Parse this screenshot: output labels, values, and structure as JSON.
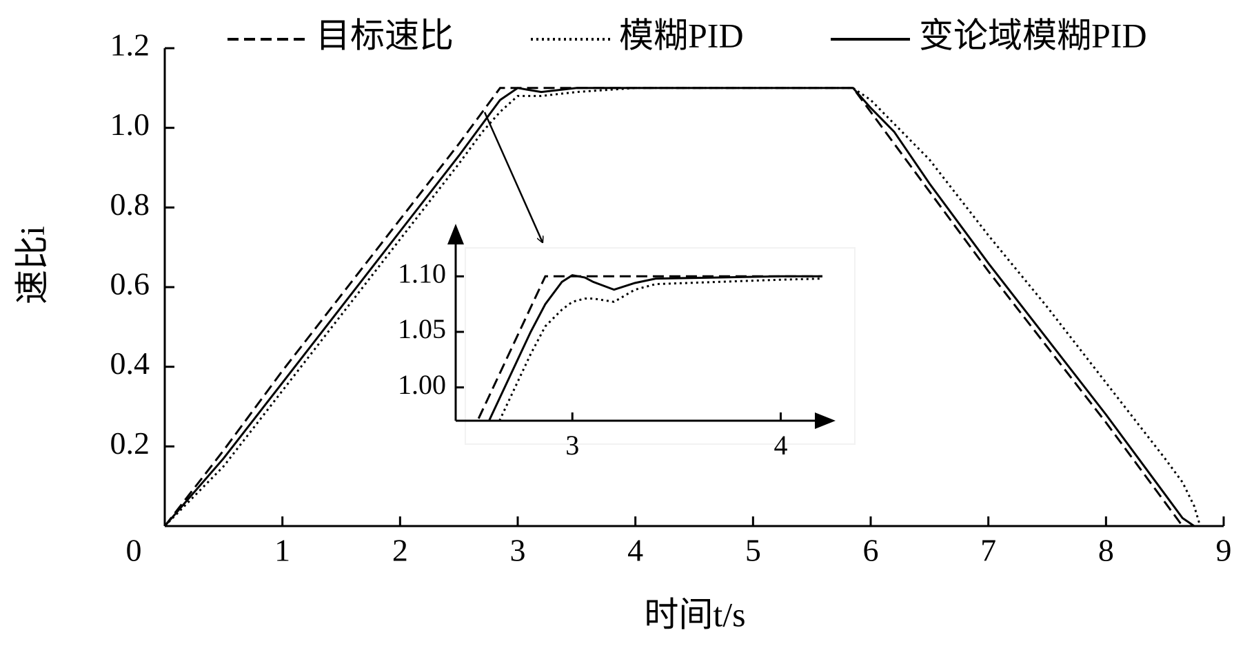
{
  "chart_data": [
    {
      "type": "line",
      "xlabel": "时间t/s",
      "ylabel": "速比i",
      "xlim": [
        0,
        9
      ],
      "ylim": [
        0,
        1.2
      ],
      "xticks": [
        0,
        1,
        2,
        3,
        4,
        5,
        6,
        7,
        8,
        9
      ],
      "yticks": [
        0.2,
        0.4,
        0.6,
        0.8,
        {
          "value": 1,
          "label": "1.0"
        },
        1.2
      ],
      "x": [
        0,
        0.5,
        1,
        1.5,
        2,
        2.5,
        2.7,
        2.85,
        3,
        3.2,
        3.5,
        4,
        5,
        5.7,
        5.85,
        6,
        6.2,
        6.5,
        7,
        7.5,
        8,
        8.5,
        8.65,
        8.75,
        8.8
      ],
      "series": [
        {
          "name": "目标速比",
          "color": "#000000",
          "dash": "dashed",
          "values": [
            0,
            0.19,
            0.39,
            0.58,
            0.77,
            0.96,
            1.04,
            1.1,
            1.1,
            1.1,
            1.1,
            1.1,
            1.1,
            1.1,
            1.1,
            1.04,
            0.96,
            0.84,
            0.64,
            0.45,
            0.26,
            0.06,
            0,
            0,
            0
          ]
        },
        {
          "name": "模糊PID",
          "color": "#000000",
          "dash": "dotted",
          "values": [
            0,
            0.15,
            0.34,
            0.53,
            0.72,
            0.91,
            0.99,
            1.04,
            1.08,
            1.08,
            1.09,
            1.1,
            1.1,
            1.1,
            1.1,
            1.07,
            1.01,
            0.92,
            0.73,
            0.55,
            0.36,
            0.17,
            0.11,
            0.05,
            0
          ]
        },
        {
          "name": "变论域模糊PID",
          "color": "#000000",
          "dash": "solid",
          "values": [
            0,
            0.17,
            0.36,
            0.55,
            0.74,
            0.93,
            1.01,
            1.07,
            1.1,
            1.09,
            1.1,
            1.1,
            1.1,
            1.1,
            1.1,
            1.05,
            0.99,
            0.86,
            0.66,
            0.47,
            0.28,
            0.08,
            0.02,
            0,
            0
          ]
        }
      ]
    },
    {
      "type": "line",
      "xlim": [
        2.44,
        4.24
      ],
      "ylim": [
        0.97,
        1.143
      ],
      "xticks": [
        3,
        4
      ],
      "yticks": [
        {
          "value": 1,
          "label": "1.00"
        },
        1.05,
        {
          "value": 1.1,
          "label": "1.10"
        }
      ],
      "x": [
        2.55,
        2.6,
        2.65,
        2.8,
        2.87,
        2.95,
        3.0,
        3.06,
        3.1,
        3.2,
        3.3,
        3.4,
        3.7,
        4.0,
        4.2
      ],
      "series": [
        {
          "color": "#000000",
          "dash": "dashed",
          "values": [
            0.972,
            0.992,
            1.012,
            1.072,
            1.1,
            1.1,
            1.1,
            1.1,
            1.1,
            1.1,
            1.1,
            1.1,
            1.1,
            1.1,
            1.1
          ]
        },
        {
          "color": "#000000",
          "dash": "dotted",
          "values": [
            null,
            null,
            0.97,
            1.03,
            1.055,
            1.07,
            1.077,
            1.08,
            1.08,
            1.077,
            1.088,
            1.093,
            1.095,
            1.097,
            1.098
          ]
        },
        {
          "color": "#000000",
          "dash": "solid",
          "values": [
            null,
            0.97,
            0.99,
            1.05,
            1.075,
            1.095,
            1.101,
            1.099,
            1.095,
            1.088,
            1.094,
            1.098,
            1.099,
            1.1,
            1.1
          ]
        }
      ]
    }
  ]
}
